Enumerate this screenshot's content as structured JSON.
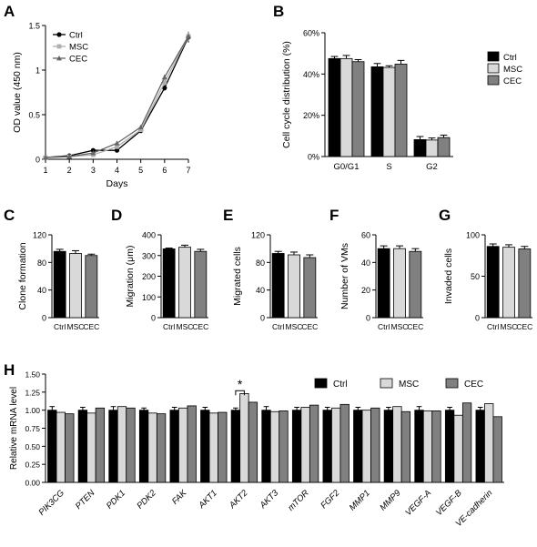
{
  "panel_labels": [
    "A",
    "B",
    "C",
    "D",
    "E",
    "F",
    "G",
    "H"
  ],
  "chart_data": [
    {
      "panel": "A",
      "type": "line",
      "xlabel": "Days",
      "ylabel": "OD value (450 nm)",
      "x": [
        1,
        2,
        3,
        4,
        5,
        6,
        7
      ],
      "xlim": [
        1,
        7
      ],
      "ylim": [
        0,
        1.5
      ],
      "yticks": [
        0,
        0.5,
        1.0,
        1.5
      ],
      "ytick_labels": [
        "0",
        "0.5",
        "1",
        "1.5"
      ],
      "legend": "top-left",
      "series": [
        {
          "name": "Ctrl",
          "color": "#000000",
          "marker": "circle",
          "values": [
            0.02,
            0.04,
            0.1,
            0.1,
            0.32,
            0.8,
            1.37
          ],
          "errors": [
            0.005,
            0.01,
            0.01,
            0.01,
            0.02,
            0.03,
            0.06
          ]
        },
        {
          "name": "MSC",
          "color": "#b0b0b0",
          "marker": "square",
          "values": [
            0.02,
            0.03,
            0.05,
            0.14,
            0.33,
            0.86,
            1.38
          ],
          "errors": [
            0.005,
            0.01,
            0.01,
            0.01,
            0.02,
            0.03,
            0.05
          ]
        },
        {
          "name": "CEC",
          "color": "#666666",
          "marker": "triangle",
          "values": [
            0.02,
            0.03,
            0.07,
            0.18,
            0.36,
            0.92,
            1.38
          ],
          "errors": [
            0.005,
            0.01,
            0.01,
            0.01,
            0.02,
            0.03,
            0.05
          ]
        }
      ]
    },
    {
      "panel": "B",
      "type": "bar",
      "ylabel": "Cell cycle distribution (%)",
      "categories": [
        "G0/G1",
        "S",
        "G2"
      ],
      "ylim": [
        0,
        60
      ],
      "yticks": [
        0,
        20,
        40,
        60
      ],
      "ytick_labels": [
        "0%",
        "20%",
        "40%",
        "60%"
      ],
      "legend": "right",
      "series": [
        {
          "name": "Ctrl",
          "color": "#000000",
          "values": [
            47.5,
            43.5,
            8.2
          ],
          "errors": [
            1.0,
            1.6,
            1.5
          ]
        },
        {
          "name": "MSC",
          "color": "#d9d9d9",
          "values": [
            47.5,
            43.2,
            8.0
          ],
          "errors": [
            1.5,
            0.8,
            1.0
          ]
        },
        {
          "name": "CEC",
          "color": "#808080",
          "values": [
            46.0,
            44.8,
            9.2
          ],
          "errors": [
            1.0,
            1.8,
            1.2
          ]
        }
      ]
    },
    {
      "panel": "C",
      "type": "bar",
      "ylabel": "Clone formation",
      "categories": [
        "Ctrl",
        "MSC",
        "CEC"
      ],
      "colors": [
        "#000000",
        "#d9d9d9",
        "#808080"
      ],
      "ylim": [
        0,
        120
      ],
      "yticks": [
        0,
        40,
        80,
        120
      ],
      "values": [
        96,
        93,
        90
      ],
      "errors": [
        3,
        4,
        2
      ]
    },
    {
      "panel": "D",
      "type": "bar",
      "ylabel": "Migration (μm)",
      "categories": [
        "Ctrl",
        "MSC",
        "CEC"
      ],
      "colors": [
        "#000000",
        "#d9d9d9",
        "#808080"
      ],
      "ylim": [
        0,
        400
      ],
      "yticks": [
        0,
        100,
        200,
        300,
        400
      ],
      "values": [
        332,
        340,
        320
      ],
      "errors": [
        4,
        10,
        10
      ]
    },
    {
      "panel": "E",
      "type": "bar",
      "ylabel": "Migrated cells",
      "categories": [
        "Ctrl",
        "MSC",
        "CEC"
      ],
      "colors": [
        "#000000",
        "#d9d9d9",
        "#808080"
      ],
      "ylim": [
        0,
        120
      ],
      "yticks": [
        0,
        40,
        80,
        120
      ],
      "values": [
        93,
        91,
        87
      ],
      "errors": [
        3,
        4,
        4
      ]
    },
    {
      "panel": "F",
      "type": "bar",
      "ylabel": "Number of VMs",
      "categories": [
        "Ctrl",
        "MSC",
        "CEC"
      ],
      "colors": [
        "#000000",
        "#d9d9d9",
        "#808080"
      ],
      "ylim": [
        0,
        60
      ],
      "yticks": [
        0,
        20,
        40,
        60
      ],
      "values": [
        50,
        50,
        48
      ],
      "errors": [
        2,
        2,
        2
      ]
    },
    {
      "panel": "G",
      "type": "bar",
      "ylabel": "Invaded cells",
      "categories": [
        "Ctrl",
        "MSC",
        "CEC"
      ],
      "colors": [
        "#000000",
        "#d9d9d9",
        "#808080"
      ],
      "ylim": [
        0,
        100
      ],
      "yticks": [
        0,
        50,
        100
      ],
      "values": [
        86,
        85,
        83
      ],
      "errors": [
        3,
        3,
        3
      ]
    },
    {
      "panel": "H",
      "type": "bar",
      "ylabel": "Relative mRNA level",
      "categories": [
        "PIK3CG",
        "PTEN",
        "PDK1",
        "PDK2",
        "FAK",
        "AKT1",
        "AKT2",
        "AKT3",
        "mTOR",
        "FGF2",
        "MMP1",
        "MMP9",
        "VEGF-A",
        "VEGF-B",
        "VE-cadherin"
      ],
      "ylim": [
        0,
        1.5
      ],
      "yticks": [
        0,
        0.25,
        0.5,
        0.75,
        1.0,
        1.25,
        1.5
      ],
      "ytick_labels": [
        "0.00",
        "0.25",
        "0.50",
        "0.75",
        "1.00",
        "1.25",
        "1.50"
      ],
      "legend": "top-right",
      "annotation": {
        "category": "AKT2",
        "text": "*"
      },
      "series": [
        {
          "name": "Ctrl",
          "color": "#000000",
          "values": [
            1.0,
            1.0,
            1.0,
            1.0,
            1.0,
            1.0,
            1.0,
            1.0,
            1.0,
            1.0,
            1.0,
            1.0,
            1.0,
            1.0,
            1.0
          ],
          "errors": [
            0.05,
            0.04,
            0.05,
            0.03,
            0.04,
            0.04,
            0.03,
            0.05,
            0.04,
            0.04,
            0.04,
            0.04,
            0.05,
            0.04,
            0.04
          ]
        },
        {
          "name": "MSC",
          "color": "#d9d9d9",
          "values": [
            0.97,
            0.96,
            1.05,
            0.96,
            1.03,
            0.96,
            1.23,
            0.98,
            1.04,
            1.03,
            1.0,
            1.05,
            0.99,
            0.93,
            1.09
          ]
        },
        {
          "name": "CEC",
          "color": "#808080",
          "values": [
            0.95,
            1.03,
            1.03,
            0.95,
            1.06,
            0.97,
            1.11,
            0.99,
            1.07,
            1.08,
            1.03,
            0.98,
            0.99,
            1.1,
            0.91
          ]
        }
      ]
    }
  ]
}
